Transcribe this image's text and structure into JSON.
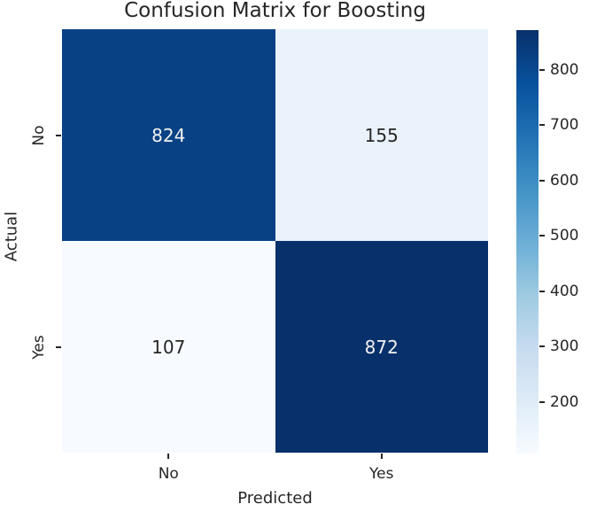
{
  "figure": {
    "background": "#ffffff",
    "text_color": "#262626"
  },
  "chart_data": {
    "type": "heatmap",
    "title": "Confusion Matrix for Boosting",
    "xlabel": "Predicted",
    "ylabel": "Actual",
    "x_tick_labels": [
      "No",
      "Yes"
    ],
    "y_tick_labels": [
      "No",
      "Yes"
    ],
    "matrix": [
      [
        824,
        155
      ],
      [
        107,
        872
      ]
    ],
    "vmin": 107,
    "vmax": 872,
    "colormap": "Blues",
    "colormap_stops": [
      "#f7fbff",
      "#deebf7",
      "#c6dbef",
      "#9ecae1",
      "#6baed6",
      "#4292c6",
      "#2171b5",
      "#08519c",
      "#08306b"
    ],
    "annotation_light_text": "#f2f2f2",
    "annotation_dark_text": "#262626",
    "colorbar": {
      "position": "right",
      "orientation": "vertical",
      "ticks": [
        200,
        300,
        400,
        500,
        600,
        700,
        800
      ]
    }
  }
}
